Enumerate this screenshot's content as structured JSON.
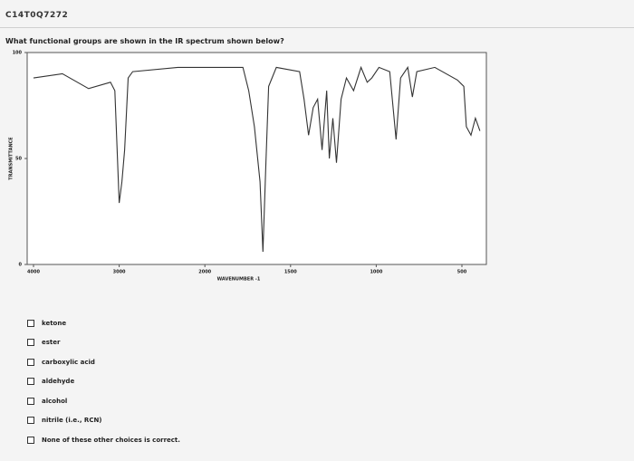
{
  "header": {
    "title": "C14T0Q7272"
  },
  "question": "What functional groups are shown in the IR spectrum shown below?",
  "chart_data": {
    "type": "line",
    "x_label": "WAVENUMBER -1",
    "y_label": "TRANSMITTANCE",
    "x": [
      4000,
      3663,
      3357,
      3102,
      3051,
      3000,
      2968,
      2937,
      2895,
      2842,
      2316,
      1778,
      1744,
      1711,
      1678,
      1661,
      1644,
      1628,
      1583,
      1447,
      1421,
      1395,
      1368,
      1342,
      1316,
      1289,
      1274,
      1253,
      1232,
      1205,
      1174,
      1132,
      1089,
      1053,
      1026,
      984,
      921,
      884,
      858,
      816,
      789,
      763,
      658,
      526,
      489,
      474,
      447,
      421,
      395
    ],
    "values": [
      88,
      90,
      83,
      86,
      82,
      29,
      39,
      54,
      88,
      91,
      93,
      93,
      82,
      65,
      39,
      6,
      48,
      84,
      93,
      91,
      78,
      61,
      74,
      78,
      54,
      82,
      50,
      69,
      48,
      78,
      88,
      82,
      93,
      86,
      88,
      93,
      91,
      59,
      88,
      93,
      79,
      91,
      93,
      87,
      84,
      65,
      61,
      69,
      63
    ],
    "color": "#333333",
    "xlim": [
      4070,
      360
    ],
    "xticks": [
      4000,
      3000,
      2000,
      1500,
      1000,
      500
    ],
    "ylim": [
      0,
      100
    ],
    "yticks": [
      0,
      50,
      100
    ]
  },
  "options": [
    "ketone",
    "ester",
    "carboxylic acid",
    "aldehyde",
    "alcohol",
    "nitrile (i.e., RCN)",
    "None of these other choices is correct."
  ]
}
